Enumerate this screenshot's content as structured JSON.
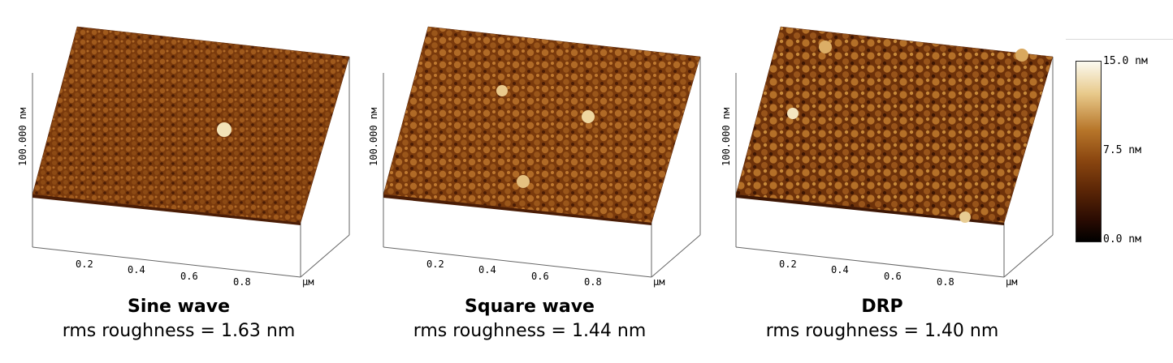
{
  "panels": [
    {
      "title": "Sine wave",
      "rms_text": "rms roughness = 1.63 nm",
      "z_axis_label": "100.000 nм",
      "x_ticks": [
        "0.2",
        "0.4",
        "0.6",
        "0.8"
      ],
      "x_unit": "μм"
    },
    {
      "title": "Square wave",
      "rms_text": "rms roughness = 1.44 nm",
      "z_axis_label": "100.000 nм",
      "x_ticks": [
        "0.2",
        "0.4",
        "0.6",
        "0.8"
      ],
      "x_unit": "μм"
    },
    {
      "title": "DRP",
      "rms_text": "rms roughness = 1.40 nm",
      "z_axis_label": "100.000 nм",
      "x_ticks": [
        "0.2",
        "0.4",
        "0.6",
        "0.8"
      ],
      "x_unit": "μм"
    }
  ],
  "colorbar": {
    "max_label": "15.0 nм",
    "mid_label": "7.5 nм",
    "min_label": "0.0 nм"
  },
  "colors": {
    "surface_base": "#7a3a0c",
    "surface_light": "#c98a3c",
    "surface_dark": "#3d1604",
    "axis": "#666666"
  }
}
